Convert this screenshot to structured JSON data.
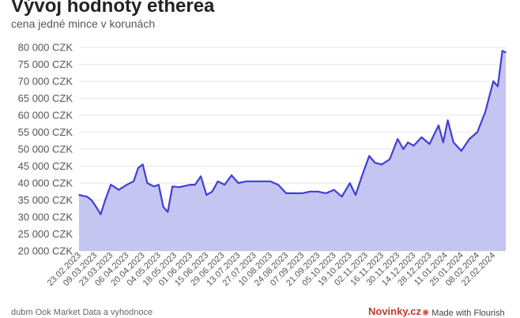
{
  "header": {
    "title": "Vývoj hodnoty etherea",
    "subtitle": "cena jedné mince v korunách"
  },
  "footer": {
    "source": "dubm Ook Market Data a vyhodnoce",
    "brand": "Novinky.cz",
    "made_with": "Made with Flourish"
  },
  "colors": {
    "line": "#3f3fd6",
    "area": "#c2c2f0",
    "grid": "#e6e6e6"
  },
  "chart_data": {
    "type": "area",
    "title": "Vývoj hodnoty etherea",
    "subtitle": "cena jedné mince v korunách",
    "ylim": [
      20000,
      80000
    ],
    "y_ticks": [
      {
        "value": 80000,
        "label": "80 000 CZK"
      },
      {
        "value": 75000,
        "label": "75 000 CZK"
      },
      {
        "value": 70000,
        "label": "70 000 CZK"
      },
      {
        "value": 65000,
        "label": "65 000 CZK"
      },
      {
        "value": 60000,
        "label": "60 000 CZK"
      },
      {
        "value": 55000,
        "label": "55 000 CZK"
      },
      {
        "value": 50000,
        "label": "50 000 CZK"
      },
      {
        "value": 45000,
        "label": "45 000 CZK"
      },
      {
        "value": 40000,
        "label": "40 000 CZK"
      },
      {
        "value": 35000,
        "label": "35 000 CZK"
      },
      {
        "value": 30000,
        "label": "30 000 CZK"
      },
      {
        "value": 25000,
        "label": "25 000 CZK"
      },
      {
        "value": 20000,
        "label": "20 000 CZK"
      }
    ],
    "x_ticks": [
      "23.02.2023",
      "09.03.2023",
      "23.03.2023",
      "06.04.2023",
      "20.04.2023",
      "04.05.2023",
      "18.05.2023",
      "01.06.2023",
      "15.06.2023",
      "29.06.2023",
      "13.07.2023",
      "27.07.2023",
      "10.08.2023",
      "24.08.2023",
      "07.09.2023",
      "21.09.2023",
      "05.10.2023",
      "19.10.2023",
      "02.11.2023",
      "16.11.2023",
      "30.11.2023",
      "14.12.2023",
      "28.12.2023",
      "11.01.2024",
      "25.01.2024",
      "08.02.2024",
      "22.02.2024"
    ],
    "grid": true,
    "legend": "none",
    "series": [
      {
        "x": [
          "2023-02-23",
          "2023-03-02",
          "2023-03-06",
          "2023-03-10",
          "2023-03-14",
          "2023-03-18",
          "2023-03-23",
          "2023-03-30",
          "2023-04-06",
          "2023-04-12",
          "2023-04-16",
          "2023-04-20",
          "2023-04-24",
          "2023-04-30",
          "2023-05-04",
          "2023-05-08",
          "2023-05-12",
          "2023-05-16",
          "2023-05-22",
          "2023-06-01",
          "2023-06-05",
          "2023-06-10",
          "2023-06-15",
          "2023-06-20",
          "2023-06-25",
          "2023-07-01",
          "2023-07-07",
          "2023-07-13",
          "2023-07-20",
          "2023-07-27",
          "2023-08-03",
          "2023-08-10",
          "2023-08-17",
          "2023-08-24",
          "2023-08-31",
          "2023-09-07",
          "2023-09-14",
          "2023-09-21",
          "2023-09-28",
          "2023-10-05",
          "2023-10-12",
          "2023-10-19",
          "2023-10-24",
          "2023-10-30",
          "2023-11-05",
          "2023-11-10",
          "2023-11-16",
          "2023-11-23",
          "2023-11-30",
          "2023-12-05",
          "2023-12-09",
          "2023-12-14",
          "2023-12-21",
          "2023-12-28",
          "2024-01-05",
          "2024-01-09",
          "2024-01-13",
          "2024-01-18",
          "2024-01-25",
          "2024-02-01",
          "2024-02-08",
          "2024-02-15",
          "2024-02-22",
          "2024-02-26",
          "2024-03-01",
          "2024-03-04"
        ],
        "values": [
          36500,
          36000,
          35000,
          33000,
          30800,
          35000,
          39500,
          38000,
          39500,
          40500,
          44500,
          45500,
          40000,
          39000,
          39500,
          33000,
          31500,
          39000,
          38800,
          39500,
          39500,
          42000,
          36500,
          37500,
          40500,
          39500,
          42300,
          40000,
          40500,
          40500,
          40500,
          40500,
          39500,
          37000,
          37000,
          37000,
          37500,
          37500,
          37000,
          38000,
          36000,
          40000,
          36500,
          42500,
          48000,
          46000,
          45500,
          47000,
          53000,
          50000,
          52000,
          51000,
          53500,
          51500,
          57000,
          52000,
          58500,
          52000,
          49500,
          53000,
          55000,
          61000,
          70000,
          68500,
          79000,
          78500
        ]
      }
    ]
  }
}
